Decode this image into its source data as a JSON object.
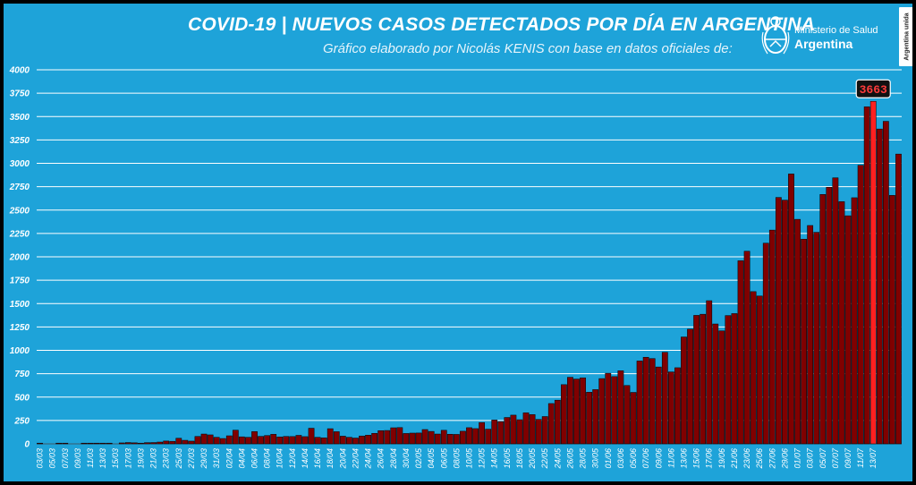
{
  "header": {
    "title": "COVID-19  |  NUEVOS CASOS DETECTADOS POR DÍA EN ARGENTINA",
    "subtitle": "Gráfico elaborado por Nicolás KENIS con base en datos oficiales de:"
  },
  "logo": {
    "line1": "Ministerio de Salud",
    "line2": "Argentina",
    "icon": "coat-of-arms-icon"
  },
  "side_tag": "Argentina unida",
  "colors": {
    "background": "#1ea3d9",
    "bar": "#800000",
    "highlight": "#ff2020",
    "gridline": "#ffffff"
  },
  "chart_data": {
    "type": "bar",
    "start_date": "2020-03-03",
    "ylim": [
      0,
      4000
    ],
    "yticks": [
      "0",
      "250",
      "500",
      "750",
      "1000",
      "1250",
      "1500",
      "1750",
      "2000",
      "2250",
      "2500",
      "2750",
      "3000",
      "3250",
      "3500",
      "3750",
      "4000"
    ],
    "xtick_labels": [
      "03/03",
      "05/03",
      "07/03",
      "09/03",
      "11/03",
      "13/03",
      "15/03",
      "17/03",
      "19/03",
      "21/03",
      "23/03",
      "25/03",
      "27/03",
      "29/03",
      "31/03",
      "02/04",
      "04/04",
      "06/04",
      "08/04",
      "10/04",
      "12/04",
      "14/04",
      "16/04",
      "18/04",
      "20/04",
      "22/04",
      "24/04",
      "26/04",
      "28/04",
      "30/04",
      "02/05",
      "04/05",
      "06/05",
      "08/05",
      "10/05",
      "12/05",
      "14/05",
      "16/05",
      "18/05",
      "20/05",
      "22/05",
      "24/05",
      "26/05",
      "28/05",
      "30/05",
      "01/06",
      "03/06",
      "05/06",
      "07/06",
      "09/06",
      "11/06",
      "13/06",
      "15/06",
      "17/06",
      "19/06",
      "21/06",
      "23/06",
      "25/06",
      "27/06",
      "29/06",
      "01/07",
      "03/07",
      "05/07",
      "07/07",
      "09/07",
      "11/07",
      "13/07"
    ],
    "values": [
      1,
      0,
      0,
      1,
      2,
      0,
      0,
      2,
      1,
      2,
      5,
      3,
      0,
      10,
      14,
      11,
      2,
      13,
      14,
      19,
      30,
      27,
      60,
      38,
      29,
      79,
      105,
      96,
      70,
      57,
      86,
      146,
      75,
      70,
      131,
      80,
      89,
      102,
      74,
      79,
      78,
      91,
      77,
      167,
      70,
      64,
      162,
      130,
      82,
      70,
      62,
      84,
      93,
      112,
      141,
      143,
      172,
      174,
      111,
      115,
      116,
      153,
      133,
      105,
      145,
      103,
      101,
      135,
      173,
      163,
      228,
      157,
      255,
      238,
      282,
      307,
      258,
      332,
      313,
      261,
      292,
      431,
      467,
      633,
      712,
      693,
      706,
      552,
      580,
      698,
      755,
      719,
      782,
      624,
      550,
      886,
      926,
      912,
      822,
      979,
      769,
      814,
      1143,
      1226,
      1374,
      1386,
      1531,
      1282,
      1208,
      1372,
      1393,
      1958,
      2060,
      1628,
      1581,
      2146,
      2286,
      2635,
      2606,
      2886,
      2401,
      2189,
      2335,
      2262,
      2667,
      2744,
      2845,
      2590,
      2439,
      2632,
      2979,
      3604,
      3663,
      3367,
      3449,
      2657,
      3099
    ],
    "highlight_label": "3663"
  }
}
